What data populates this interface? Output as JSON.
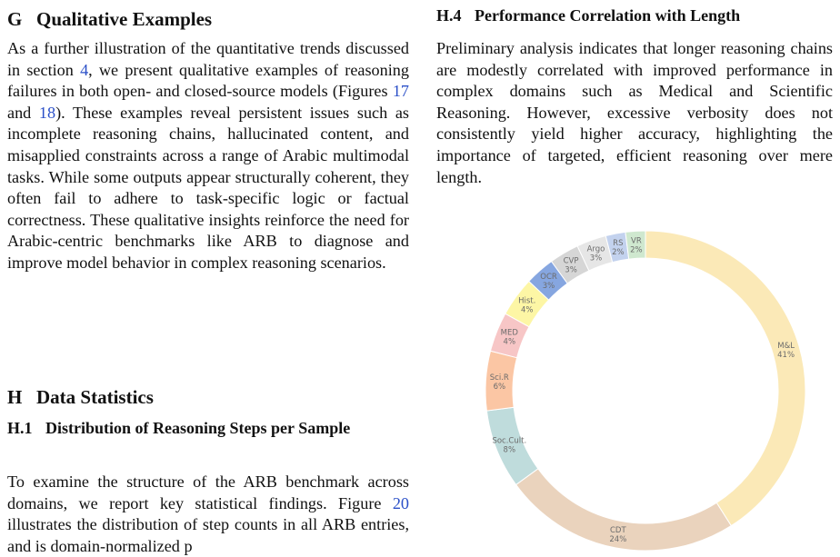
{
  "left": {
    "sec_g": {
      "num": "G",
      "title": "Qualitative Examples"
    },
    "para_g": {
      "t1": "As a further illustration of the quantitative trends discussed in section ",
      "r1": "4",
      "t2": ", we present qualitative examples of reasoning failures in both open- and closed-source models (Figures ",
      "r2": "17",
      "t3": " and ",
      "r3": "18",
      "t4": "). These examples reveal persistent issues such as incomplete reasoning chains, hallucinated content, and misapplied constraints across a range of Arabic multimodal tasks. While some outputs appear structurally coherent, they often fail to adhere to task-specific logic or factual correctness. These qualitative insights reinforce the need for Arabic-centric benchmarks like ARB to diagnose and improve model behavior in complex reasoning scenarios."
    },
    "sec_h": {
      "num": "H",
      "title": "Data Statistics"
    },
    "sub_h1": {
      "num": "H.1",
      "title": "Distribution of Reasoning Steps per Sample"
    },
    "para_h1": {
      "t1": "To examine the structure of the ARB benchmark across domains, we report key statistical findings. Figure ",
      "r1": "20",
      "t2": " illustrates the distribution of step counts in all ARB entries, and  is domain-normalized p"
    }
  },
  "right": {
    "sub_h4": {
      "num": "H.4",
      "title": "Performance Correlation with Length"
    },
    "para_h4": "Preliminary analysis indicates that longer reasoning chains are modestly correlated with improved performance in complex domains such as Medical and Scientific Reasoning. However, excessive verbosity does not consistently yield higher accuracy, highlighting the importance of targeted, efficient reasoning over mere length."
  },
  "chart_data": {
    "type": "pie",
    "style": "donut",
    "title": "",
    "slices": [
      {
        "label": "M&L",
        "pct_text": "41%",
        "value": 41,
        "color": "#fbe9b7"
      },
      {
        "label": "CDT",
        "pct_text": "24%",
        "value": 24,
        "color": "#ead3bd"
      },
      {
        "label": "Soc.Cult.",
        "pct_text": "8%",
        "value": 8,
        "color": "#bfdcdc"
      },
      {
        "label": "Sci.R",
        "pct_text": "6%",
        "value": 6,
        "color": "#fbc6a4"
      },
      {
        "label": "MED",
        "pct_text": "4%",
        "value": 4,
        "color": "#f7c6c6"
      },
      {
        "label": "Hist.",
        "pct_text": "4%",
        "value": 4,
        "color": "#fdf6a5"
      },
      {
        "label": "OCR",
        "pct_text": "3%",
        "value": 3,
        "color": "#86a6e0"
      },
      {
        "label": "CVP",
        "pct_text": "3%",
        "value": 3,
        "color": "#d6d6d6"
      },
      {
        "label": "Argo",
        "pct_text": "3%",
        "value": 3,
        "color": "#e6e6e6"
      },
      {
        "label": "RS",
        "pct_text": "2%",
        "value": 2,
        "color": "#c3d2ee"
      },
      {
        "label": "VR",
        "pct_text": "2%",
        "value": 2,
        "color": "#cfe8cf"
      }
    ]
  }
}
